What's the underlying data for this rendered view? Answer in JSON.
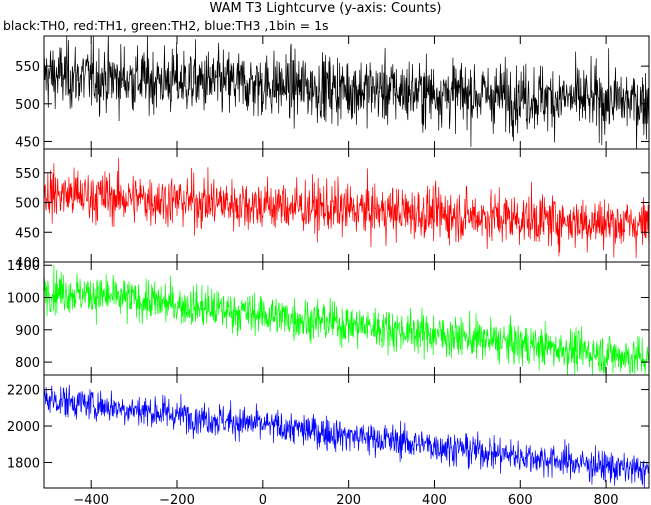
{
  "chart_data": {
    "type": "line",
    "title": "WAM T3 Lightcurve (y-axis: Counts)",
    "subtitle": "black:TH0, red:TH1, green:TH2, blue:TH3 ,1bin = 1s",
    "xlim": [
      -510,
      900
    ],
    "x_ticks": [
      -400,
      -200,
      0,
      200,
      400,
      600,
      800
    ],
    "x_tick_labels": [
      "−400",
      "−200",
      "0",
      "200",
      "400",
      "600",
      "800"
    ],
    "grid": false,
    "panels": [
      {
        "name": "TH0",
        "color": "#000000",
        "ylim": [
          440,
          590
        ],
        "y_ticks": [
          450,
          500,
          550
        ],
        "y_tick_labels": [
          "450",
          "500",
          "550"
        ],
        "trend": {
          "x": [
            -510,
            900
          ],
          "y": [
            538,
            502
          ]
        },
        "noise_sd": 22
      },
      {
        "name": "TH1",
        "color": "#ff0000",
        "ylim": [
          400,
          590
        ],
        "y_ticks": [
          400,
          450,
          500,
          550
        ],
        "y_tick_labels": [
          "400",
          "450",
          "500",
          "550"
        ],
        "trend": {
          "x": [
            -510,
            900
          ],
          "y": [
            515,
            462
          ]
        },
        "noise_sd": 22
      },
      {
        "name": "TH2",
        "color": "#00ff00",
        "ylim": [
          760,
          1110
        ],
        "y_ticks": [
          800,
          900,
          1000,
          1100
        ],
        "y_tick_labels": [
          "800",
          "900",
          "1000",
          "1100"
        ],
        "trend": {
          "x": [
            -510,
            900
          ],
          "y": [
            1025,
            810
          ]
        },
        "noise_sd": 32
      },
      {
        "name": "TH3",
        "color": "#0000ff",
        "ylim": [
          1660,
          2280
        ],
        "y_ticks": [
          1800,
          2000,
          2200
        ],
        "y_tick_labels": [
          "1800",
          "2000",
          "2200"
        ],
        "trend": {
          "x": [
            -510,
            900
          ],
          "y": [
            2150,
            1750
          ]
        },
        "noise_sd": 45
      }
    ]
  }
}
